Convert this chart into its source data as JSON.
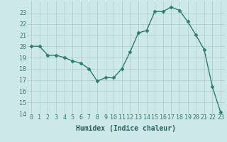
{
  "x": [
    0,
    1,
    2,
    3,
    4,
    5,
    6,
    7,
    8,
    9,
    10,
    11,
    12,
    13,
    14,
    15,
    16,
    17,
    18,
    19,
    20,
    21,
    22,
    23
  ],
  "y": [
    20.0,
    20.0,
    19.2,
    19.2,
    19.0,
    18.7,
    18.5,
    18.0,
    16.9,
    17.2,
    17.2,
    18.0,
    19.5,
    21.2,
    21.4,
    23.1,
    23.1,
    23.5,
    23.2,
    22.2,
    21.0,
    19.7,
    16.4,
    14.1
  ],
  "xlabel": "Humidex (Indice chaleur)",
  "ylim": [
    14,
    24
  ],
  "xlim": [
    -0.5,
    23.5
  ],
  "yticks": [
    14,
    15,
    16,
    17,
    18,
    19,
    20,
    21,
    22,
    23
  ],
  "xticks": [
    0,
    1,
    2,
    3,
    4,
    5,
    6,
    7,
    8,
    9,
    10,
    11,
    12,
    13,
    14,
    15,
    16,
    17,
    18,
    19,
    20,
    21,
    22,
    23
  ],
  "line_color": "#2e7d6e",
  "marker": "D",
  "marker_size": 2.5,
  "bg_color": "#cce8e8",
  "grid_color": "#b0c8c8",
  "tick_fontsize": 6,
  "xlabel_fontsize": 7,
  "line_width": 1.0
}
